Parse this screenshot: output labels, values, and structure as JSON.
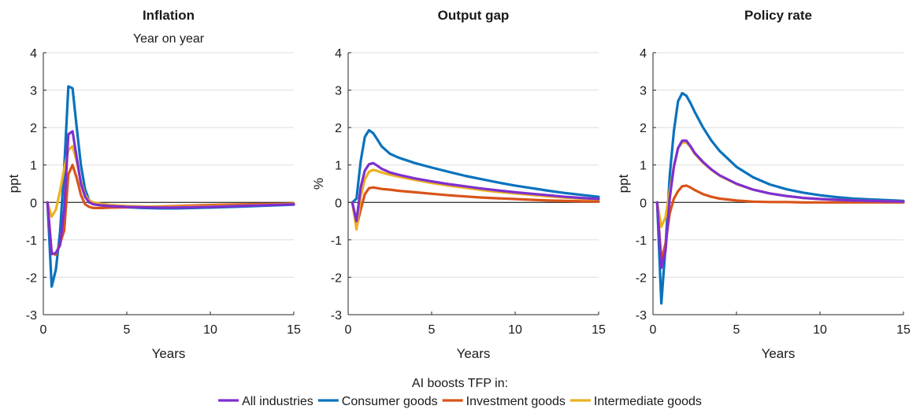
{
  "chart_data": [
    {
      "type": "line",
      "title": "Inflation",
      "subtitle": "Year on year",
      "xlabel": "Years",
      "ylabel": "ppt",
      "xlim": [
        0,
        15
      ],
      "ylim": [
        -3,
        4
      ],
      "xticks": [
        0,
        5,
        10,
        15
      ],
      "yticks": [
        -3,
        -2,
        -1,
        0,
        1,
        2,
        3,
        4
      ],
      "grid": "horizontal",
      "zero_line": true,
      "series": [
        {
          "name": "All industries",
          "color": "#7e2fd0",
          "x": [
            0.25,
            0.5,
            0.75,
            1.0,
            1.25,
            1.5,
            1.75,
            2.0,
            2.25,
            2.5,
            2.75,
            3.0,
            3.5,
            4.0,
            5.0,
            6.0,
            7.0,
            8.0,
            10.0,
            12.0,
            15.0
          ],
          "y": [
            0,
            -1.38,
            -1.35,
            -1.15,
            -0.2,
            1.82,
            1.9,
            1.2,
            0.5,
            0.15,
            0.0,
            -0.05,
            -0.08,
            -0.1,
            -0.12,
            -0.13,
            -0.14,
            -0.14,
            -0.12,
            -0.09,
            -0.05
          ]
        },
        {
          "name": "Consumer goods",
          "color": "#0a72bd",
          "x": [
            0.25,
            0.5,
            0.75,
            1.0,
            1.25,
            1.5,
            1.75,
            2.0,
            2.25,
            2.5,
            2.75,
            3.0,
            3.5,
            4.0,
            5.0,
            6.0,
            7.0,
            8.0,
            10.0,
            12.0,
            15.0
          ],
          "y": [
            0,
            -2.25,
            -1.8,
            -0.8,
            0.9,
            3.1,
            3.05,
            2.0,
            1.0,
            0.35,
            0.05,
            -0.05,
            -0.08,
            -0.1,
            -0.13,
            -0.15,
            -0.16,
            -0.16,
            -0.14,
            -0.11,
            -0.06
          ]
        },
        {
          "name": "Investment goods",
          "color": "#d95319",
          "x": [
            0.25,
            0.5,
            0.75,
            1.0,
            1.25,
            1.5,
            1.75,
            2.0,
            2.25,
            2.5,
            2.75,
            3.0,
            3.5,
            4.0,
            5.0,
            6.0,
            7.0,
            8.0,
            10.0,
            12.0,
            15.0
          ],
          "y": [
            0,
            -1.35,
            -1.4,
            -1.1,
            -0.75,
            0.75,
            1.0,
            0.65,
            0.2,
            -0.05,
            -0.12,
            -0.15,
            -0.15,
            -0.14,
            -0.13,
            -0.12,
            -0.11,
            -0.1,
            -0.07,
            -0.05,
            -0.03
          ]
        },
        {
          "name": "Intermediate goods",
          "color": "#edb120",
          "x": [
            0.25,
            0.5,
            0.75,
            1.0,
            1.25,
            1.5,
            1.75,
            2.0,
            2.25,
            2.5,
            2.75,
            3.0,
            3.5,
            4.0,
            5.0,
            6.0,
            7.0,
            8.0,
            10.0,
            12.0,
            15.0
          ],
          "y": [
            0,
            -0.38,
            -0.2,
            0.3,
            0.9,
            1.4,
            1.5,
            1.1,
            0.55,
            0.2,
            0.05,
            0.0,
            -0.04,
            -0.07,
            -0.1,
            -0.11,
            -0.12,
            -0.12,
            -0.1,
            -0.08,
            -0.04
          ]
        }
      ]
    },
    {
      "type": "line",
      "title": "Output gap",
      "subtitle": "",
      "xlabel": "Years",
      "ylabel": "%",
      "xlim": [
        0,
        15
      ],
      "ylim": [
        -3,
        4
      ],
      "xticks": [
        0,
        5,
        10,
        15
      ],
      "yticks": [
        -3,
        -2,
        -1,
        0,
        1,
        2,
        3,
        4
      ],
      "grid": "horizontal",
      "zero_line": true,
      "series": [
        {
          "name": "All industries",
          "color": "#7e2fd0",
          "x": [
            0.25,
            0.5,
            0.75,
            1.0,
            1.25,
            1.5,
            1.75,
            2.0,
            2.5,
            3.0,
            4.0,
            5.0,
            6.0,
            7.0,
            8.0,
            9.0,
            10.0,
            11.0,
            12.0,
            13.0,
            14.0,
            15.0
          ],
          "y": [
            0,
            -0.5,
            0.4,
            0.85,
            1.02,
            1.05,
            0.98,
            0.9,
            0.8,
            0.74,
            0.64,
            0.56,
            0.49,
            0.43,
            0.37,
            0.32,
            0.27,
            0.23,
            0.19,
            0.15,
            0.12,
            0.09
          ]
        },
        {
          "name": "Consumer goods",
          "color": "#0a72bd",
          "x": [
            0.25,
            0.5,
            0.75,
            1.0,
            1.25,
            1.5,
            1.75,
            2.0,
            2.5,
            3.0,
            4.0,
            5.0,
            6.0,
            7.0,
            8.0,
            9.0,
            10.0,
            11.0,
            12.0,
            13.0,
            14.0,
            15.0
          ],
          "y": [
            0,
            0.1,
            1.1,
            1.75,
            1.93,
            1.85,
            1.68,
            1.5,
            1.3,
            1.2,
            1.05,
            0.93,
            0.82,
            0.71,
            0.62,
            0.53,
            0.45,
            0.38,
            0.31,
            0.25,
            0.2,
            0.15
          ]
        },
        {
          "name": "Investment goods",
          "color": "#d95319",
          "x": [
            0.25,
            0.5,
            0.75,
            1.0,
            1.25,
            1.5,
            1.75,
            2.0,
            2.5,
            3.0,
            4.0,
            5.0,
            6.0,
            7.0,
            8.0,
            9.0,
            10.0,
            11.0,
            12.0,
            13.0,
            14.0,
            15.0
          ],
          "y": [
            0,
            -0.65,
            -0.2,
            0.22,
            0.38,
            0.4,
            0.38,
            0.36,
            0.34,
            0.31,
            0.27,
            0.23,
            0.19,
            0.16,
            0.13,
            0.11,
            0.09,
            0.07,
            0.05,
            0.04,
            0.03,
            0.02
          ]
        },
        {
          "name": "Intermediate goods",
          "color": "#edb120",
          "x": [
            0.25,
            0.5,
            0.75,
            1.0,
            1.25,
            1.5,
            1.75,
            2.0,
            2.5,
            3.0,
            4.0,
            5.0,
            6.0,
            7.0,
            8.0,
            9.0,
            10.0,
            11.0,
            12.0,
            13.0,
            14.0,
            15.0
          ],
          "y": [
            0,
            -0.72,
            0.15,
            0.62,
            0.82,
            0.87,
            0.84,
            0.8,
            0.74,
            0.69,
            0.6,
            0.52,
            0.45,
            0.39,
            0.33,
            0.28,
            0.24,
            0.2,
            0.16,
            0.13,
            0.1,
            0.08
          ]
        }
      ]
    },
    {
      "type": "line",
      "title": "Policy rate",
      "subtitle": "",
      "xlabel": "Years",
      "ylabel": "ppt",
      "xlim": [
        0,
        15
      ],
      "ylim": [
        -3,
        4
      ],
      "xticks": [
        0,
        5,
        10,
        15
      ],
      "yticks": [
        -3,
        -2,
        -1,
        0,
        1,
        2,
        3,
        4
      ],
      "grid": "horizontal",
      "zero_line": true,
      "series": [
        {
          "name": "All industries",
          "color": "#7e2fd0",
          "x": [
            0.25,
            0.5,
            0.75,
            1.0,
            1.25,
            1.5,
            1.75,
            2.0,
            2.25,
            2.5,
            3.0,
            3.5,
            4.0,
            5.0,
            6.0,
            7.0,
            8.0,
            9.0,
            10.0,
            11.0,
            12.0,
            13.0,
            14.0,
            15.0
          ],
          "y": [
            0,
            -1.75,
            -1.3,
            0.1,
            0.95,
            1.45,
            1.65,
            1.65,
            1.5,
            1.32,
            1.08,
            0.88,
            0.72,
            0.5,
            0.34,
            0.24,
            0.17,
            0.12,
            0.09,
            0.07,
            0.05,
            0.04,
            0.03,
            0.02
          ]
        },
        {
          "name": "Consumer goods",
          "color": "#0a72bd",
          "x": [
            0.25,
            0.5,
            0.75,
            1.0,
            1.25,
            1.5,
            1.75,
            2.0,
            2.25,
            2.5,
            3.0,
            3.5,
            4.0,
            5.0,
            6.0,
            7.0,
            8.0,
            9.0,
            10.0,
            11.0,
            12.0,
            13.0,
            14.0,
            15.0
          ],
          "y": [
            0,
            -2.7,
            -1.2,
            0.7,
            1.9,
            2.7,
            2.92,
            2.85,
            2.65,
            2.42,
            2.0,
            1.65,
            1.37,
            0.95,
            0.67,
            0.48,
            0.35,
            0.26,
            0.19,
            0.14,
            0.1,
            0.08,
            0.06,
            0.04
          ]
        },
        {
          "name": "Investment goods",
          "color": "#d95319",
          "x": [
            0.25,
            0.5,
            0.75,
            1.0,
            1.25,
            1.5,
            1.75,
            2.0,
            2.25,
            2.5,
            3.0,
            3.5,
            4.0,
            5.0,
            6.0,
            7.0,
            8.0,
            9.0,
            10.0,
            11.0,
            12.0,
            13.0,
            14.0,
            15.0
          ],
          "y": [
            0,
            -1.55,
            -1.1,
            -0.3,
            0.1,
            0.3,
            0.43,
            0.45,
            0.4,
            0.33,
            0.22,
            0.15,
            0.1,
            0.05,
            0.02,
            0.01,
            0.01,
            0.0,
            0.0,
            0.0,
            0.0,
            0.0,
            0.0,
            0.0
          ]
        },
        {
          "name": "Intermediate goods",
          "color": "#edb120",
          "x": [
            0.25,
            0.5,
            0.75,
            1.0,
            1.25,
            1.5,
            1.75,
            2.0,
            2.25,
            2.5,
            3.0,
            3.5,
            4.0,
            5.0,
            6.0,
            7.0,
            8.0,
            9.0,
            10.0,
            11.0,
            12.0,
            13.0,
            14.0,
            15.0
          ],
          "y": [
            0,
            -0.65,
            -0.4,
            0.3,
            0.95,
            1.45,
            1.6,
            1.6,
            1.48,
            1.3,
            1.06,
            0.87,
            0.71,
            0.49,
            0.34,
            0.24,
            0.17,
            0.12,
            0.09,
            0.07,
            0.05,
            0.04,
            0.03,
            0.02
          ]
        }
      ]
    }
  ],
  "legend": {
    "title": "AI boosts TFP in:",
    "placement": "bottom",
    "items": [
      {
        "label": "All industries",
        "color": "#7e2fd0"
      },
      {
        "label": "Consumer goods",
        "color": "#0a72bd"
      },
      {
        "label": "Investment goods",
        "color": "#d95319"
      },
      {
        "label": "Intermediate goods",
        "color": "#edb120"
      }
    ]
  }
}
